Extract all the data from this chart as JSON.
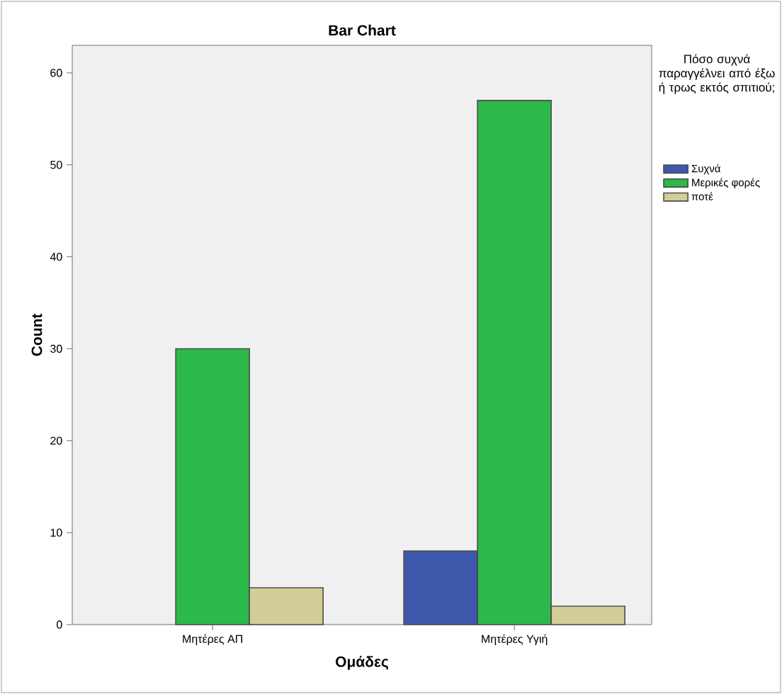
{
  "chart_data": {
    "type": "bar",
    "title": "Bar Chart",
    "xlabel": "Ομάδες",
    "ylabel": "Count",
    "legend_title": "Πόσο συχνά παραγγέλνει από έξω ή τρως εκτός σπιτιού;",
    "categories": [
      "Μητέρες ΑΠ",
      "Μητέρες Υγιή"
    ],
    "series": [
      {
        "name": "Συχνά",
        "color": "#3e58ac",
        "values": [
          null,
          8
        ]
      },
      {
        "name": "Μερικές φορές",
        "color": "#2db84a",
        "values": [
          30,
          57
        ]
      },
      {
        "name": "ποτέ",
        "color": "#d3ce97",
        "values": [
          4,
          2
        ]
      }
    ],
    "ylim": [
      0,
      63
    ],
    "yticks": [
      0,
      10,
      20,
      30,
      40,
      50,
      60
    ],
    "grid": false,
    "legend": "right"
  }
}
